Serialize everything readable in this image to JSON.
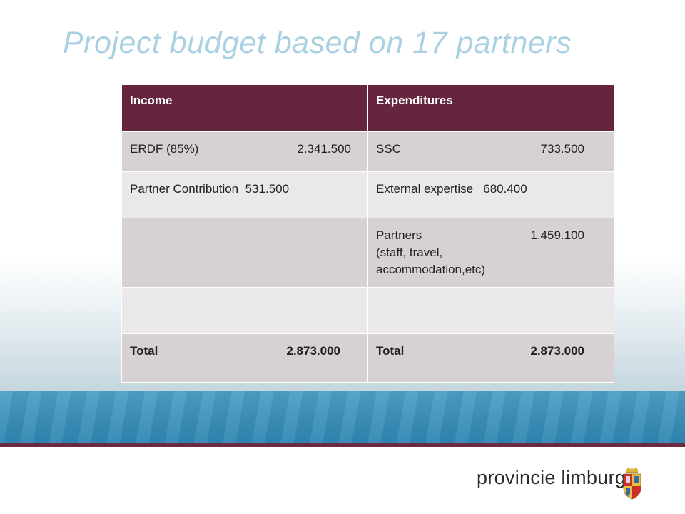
{
  "slide": {
    "title": "Project budget based on 17 partners"
  },
  "table": {
    "headers": [
      "Income",
      "Expenditures"
    ],
    "rows": [
      {
        "income_label": "ERDF (85%)",
        "income_value": "2.341.500",
        "exp_label": "SSC",
        "exp_value": "733.500"
      },
      {
        "income_label": "Partner Contribution",
        "income_value": "531.500",
        "exp_label": "External expertise",
        "exp_value": "680.400"
      },
      {
        "income_label": "",
        "income_value": "",
        "exp_label": "Partners",
        "exp_value": "1.459.100",
        "exp_note": "(staff, travel, accommodation,etc)"
      },
      {
        "income_label": "",
        "income_value": "",
        "exp_label": "",
        "exp_value": ""
      },
      {
        "income_label": "Total",
        "income_value": "2.873.000",
        "exp_label": "Total",
        "exp_value": "2.873.000"
      }
    ]
  },
  "footer": {
    "brand": "provincie limburg",
    "logo_icon": "limburg-crest-icon"
  },
  "colors": {
    "title": "#a9d1e3",
    "header_bg": "#65253e",
    "row_dark": "#d8d1d3",
    "row_light": "#ebe8e9",
    "band_teal": "#3a8fb9",
    "band_maroon": "#6b2a40"
  }
}
